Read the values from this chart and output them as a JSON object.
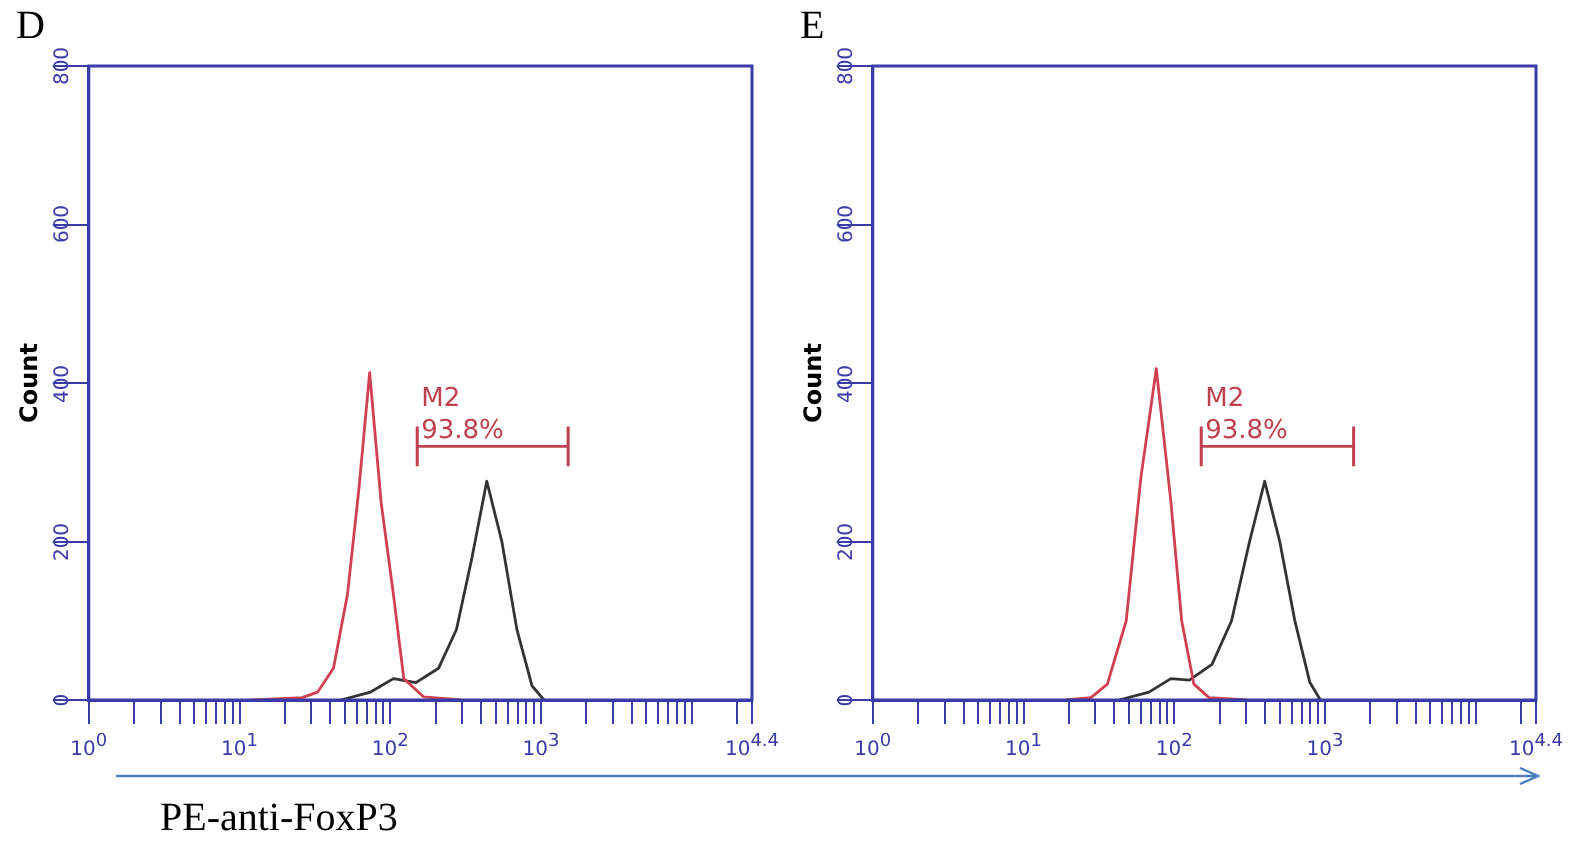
{
  "chart_data": [
    {
      "type": "line",
      "title": "D",
      "ylabel": "Count",
      "xlabel": "PE-anti-FoxP3",
      "log": "x",
      "marker": "none",
      "grid": false,
      "legend": false,
      "xlim": [
        1,
        25119
      ],
      "ylim": [
        0,
        800
      ],
      "yticks": [
        0,
        200,
        400,
        600,
        800
      ],
      "xticks": [
        {
          "value": 1,
          "label": "10$^{0}$"
        },
        {
          "value": 2,
          "label": null
        },
        {
          "value": 3,
          "label": null
        },
        {
          "value": 4,
          "label": null
        },
        {
          "value": 5,
          "label": null
        },
        {
          "value": 6,
          "label": null
        },
        {
          "value": 7,
          "label": null
        },
        {
          "value": 8,
          "label": null
        },
        {
          "value": 9,
          "label": null
        },
        {
          "value": 10,
          "label": "10$^{1}$"
        },
        {
          "value": 20,
          "label": null
        },
        {
          "value": 30,
          "label": null
        },
        {
          "value": 40,
          "label": null
        },
        {
          "value": 50,
          "label": null
        },
        {
          "value": 60,
          "label": null
        },
        {
          "value": 70,
          "label": null
        },
        {
          "value": 80,
          "label": null
        },
        {
          "value": 90,
          "label": null
        },
        {
          "value": 100,
          "label": "10$^{2}$"
        },
        {
          "value": 200,
          "label": null
        },
        {
          "value": 300,
          "label": null
        },
        {
          "value": 400,
          "label": null
        },
        {
          "value": 500,
          "label": null
        },
        {
          "value": 600,
          "label": null
        },
        {
          "value": 700,
          "label": null
        },
        {
          "value": 800,
          "label": null
        },
        {
          "value": 900,
          "label": null
        },
        {
          "value": 1000,
          "label": "10$^{3}$"
        },
        {
          "value": 2000,
          "label": null
        },
        {
          "value": 3000,
          "label": null
        },
        {
          "value": 4000,
          "label": null
        },
        {
          "value": 5000,
          "label": null
        },
        {
          "value": 6000,
          "label": null
        },
        {
          "value": 7000,
          "label": null
        },
        {
          "value": 8000,
          "label": null
        },
        {
          "value": 9000,
          "label": null
        },
        {
          "value": 10000,
          "label": null
        },
        {
          "value": 20000,
          "label": null
        },
        {
          "value": 25119,
          "label": "10$^{4.4}$"
        }
      ],
      "series": [
        {
          "color": "#d04050",
          "x": [
            12,
            26,
            33,
            42,
            52,
            62,
            73,
            87,
            105,
            123,
            166,
            295
          ],
          "values": [
            0,
            3,
            10,
            40,
            133,
            267,
            413,
            249,
            133,
            27,
            4,
            0
          ]
        },
        {
          "color": "#333333",
          "x": [
            47,
            74,
            105,
            148,
            209,
            275,
            347,
            437,
            550,
            692,
            871,
            1047
          ],
          "values": [
            0,
            10,
            27,
            22,
            40,
            89,
            178,
            276,
            200,
            89,
            18,
            0
          ]
        },
        {
          "name": "M2",
          "type": "line",
          "color": "#c04050",
          "x": [
            151,
            1514
          ],
          "values": [
            320,
            320
          ],
          "errors": [
            25,
            25
          ]
        }
      ],
      "annotations": [
        {
          "text": "93.8%",
          "x": 151,
          "y": 320
        }
      ]
    },
    {
      "type": "line",
      "title": "E",
      "ylabel": "Count",
      "log": "x",
      "marker": "none",
      "grid": false,
      "legend": false,
      "xlim": [
        1,
        25119
      ],
      "ylim": [
        0,
        800
      ],
      "yticks": [
        0,
        200,
        400,
        600,
        800
      ],
      "xticks": [
        {
          "value": 1,
          "label": "10$^{0}$"
        },
        {
          "value": 2,
          "label": null
        },
        {
          "value": 3,
          "label": null
        },
        {
          "value": 4,
          "label": null
        },
        {
          "value": 5,
          "label": null
        },
        {
          "value": 6,
          "label": null
        },
        {
          "value": 7,
          "label": null
        },
        {
          "value": 8,
          "label": null
        },
        {
          "value": 9,
          "label": null
        },
        {
          "value": 10,
          "label": "10$^{1}$"
        },
        {
          "value": 20,
          "label": null
        },
        {
          "value": 30,
          "label": null
        },
        {
          "value": 40,
          "label": null
        },
        {
          "value": 50,
          "label": null
        },
        {
          "value": 60,
          "label": null
        },
        {
          "value": 70,
          "label": null
        },
        {
          "value": 80,
          "label": null
        },
        {
          "value": 90,
          "label": null
        },
        {
          "value": 100,
          "label": "10$^{2}$"
        },
        {
          "value": 200,
          "label": null
        },
        {
          "value": 300,
          "label": null
        },
        {
          "value": 400,
          "label": null
        },
        {
          "value": 500,
          "label": null
        },
        {
          "value": 600,
          "label": null
        },
        {
          "value": 700,
          "label": null
        },
        {
          "value": 800,
          "label": null
        },
        {
          "value": 900,
          "label": null
        },
        {
          "value": 1000,
          "label": "10$^{3}$"
        },
        {
          "value": 2000,
          "label": null
        },
        {
          "value": 3000,
          "label": null
        },
        {
          "value": 4000,
          "label": null
        },
        {
          "value": 5000,
          "label": null
        },
        {
          "value": 6000,
          "label": null
        },
        {
          "value": 7000,
          "label": null
        },
        {
          "value": 8000,
          "label": null
        },
        {
          "value": 9000,
          "label": null
        },
        {
          "value": 10000,
          "label": null
        },
        {
          "value": 20000,
          "label": null
        },
        {
          "value": 25119,
          "label": "10$^{4.4}$"
        }
      ],
      "series": [
        {
          "color": "#d04050",
          "x": [
            19,
            28,
            36,
            48,
            60,
            76,
            95,
            112,
            135,
            170,
            302
          ],
          "values": [
            0,
            3,
            20,
            100,
            280,
            418,
            250,
            100,
            20,
            3,
            0
          ]
        },
        {
          "color": "#333333",
          "x": [
            43,
            68,
            95,
            126,
            178,
            240,
            316,
            398,
            501,
            631,
            794,
            933
          ],
          "values": [
            0,
            10,
            27,
            25,
            45,
            100,
            200,
            276,
            200,
            100,
            22,
            0
          ]
        },
        {
          "name": "M2",
          "type": "line",
          "color": "#c04050",
          "x": [
            151,
            1549
          ],
          "values": [
            320,
            320
          ],
          "errors": [
            25,
            25
          ]
        }
      ],
      "annotations": [
        {
          "text": "93.8%",
          "x": 151,
          "y": 320
        }
      ]
    }
  ]
}
